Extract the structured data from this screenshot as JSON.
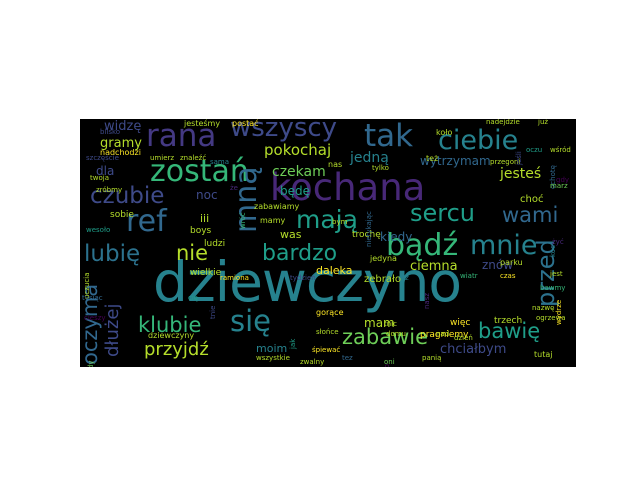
{
  "colors": {
    "background": "#000000",
    "page": "#ffffff",
    "palette": [
      "#26828e",
      "#31688e",
      "#3e4a89",
      "#482878",
      "#440154",
      "#1f9e89",
      "#35b779",
      "#6ece58",
      "#b5de2b",
      "#fde725"
    ]
  },
  "words": {
    "dziewczyno": "dziewczyno",
    "kochana": "kochana",
    "rana": "rana",
    "wszyscy": "wszyscy",
    "tak": "tak",
    "ciebie": "ciebie",
    "zostan": "zostań",
    "mna": "mną",
    "ref": "ref",
    "maja": "mają",
    "badz": "bądź",
    "mnie": "mnie",
    "sercu": "sercu",
    "wami": "wami",
    "czubie": "czubie",
    "nie": "nie",
    "lubie": "lubię",
    "bardzo": "bardzo",
    "przed": "przed",
    "oczyma": "oczyma",
    "dluzej": "dłużej",
    "klubie": "klubie",
    "sie": "się",
    "zabawie": "zabawie",
    "bawie": "bawię",
    "przyjdz": "przyjdź",
    "pokochaj": "pokochaj",
    "czekam": "czekam",
    "jesli": "jeśli",
    "widze": "widzę",
    "gramy": "gramy",
    "jedna": "jedną",
    "jestes": "jesteś",
    "wytrzymam": "wytrzymam",
    "kiedy": "kiedy",
    "ciemna": "ciemna",
    "znow": "znów",
    "noc": "noc",
    "bede": "będę",
    "dla": "dla",
    "mam": "mam",
    "zebralo": "zebrało",
    "daleka": "daleka",
    "moim": "moim",
    "chcialbym": "chciałbym",
    "wielkie": "wielkie",
    "was": "was",
    "troche": "trochę",
    "iii": "iii",
    "sobie": "sobie",
    "boys": "boys",
    "ludzi": "ludzi",
    "mamy": "mamy",
    "zabawiamy": "zabawiamy",
    "pragniemy": "pragniemy",
    "jedyna": "jedyna",
    "parku": "parku",
    "chociaz": "choć",
    "nadchodzi": "nadchodzi",
    "twoja": "twoja",
    "zrobmy": "zróbmy",
    "blisko": "blisko",
    "jestesmy": "jesteśmy",
    "postac": "postać",
    "umierz": "umierz",
    "znalezc": "znaleźć",
    "nas": "nas",
    "tylko": "tylko",
    "kolo": "koło",
    "tez": "też",
    "nadejdzie": "nadejdzie",
    "juz": "już",
    "przegoni": "przegoni",
    "dzien": "dzień",
    "dziewczyny": "dziewczyny",
    "gorace": "gorące",
    "slonce": "słońce",
    "wiec": "więc",
    "trzech": "trzech",
    "tutaj": "tutaj",
    "nad": "nad",
    "pania": "panią",
    "wszystkie": "wszystkie",
    "spiewac": "śpiewać",
    "nazwe": "nazwę",
    "ogrzewa": "ogrzewa",
    "jest": "jest",
    "tnic": "tnic",
    "domu": "domu",
    "oczu": "oczu",
    "wsrod": "wśród",
    "ochote": "ochotę",
    "gdy": "gdy",
    "marz": "marz",
    "koc": "koc",
    "zyc": "żyć",
    "bawmy": "bawmy",
    "wydrze": "wydrze",
    "szczescie": "szczęście",
    "wesoko": "wesoło",
    "uczucia": "uczucia",
    "tysiac": "tysiąc",
    "cieszy": "cieszy",
    "kazdy": "każdy",
    "sama": "sama",
    "ze": "że",
    "wroc": "wróć",
    "ramiona": "ramiona",
    "tydzien": "tydzień",
    "jak": "jak",
    "zwalny": "zwalny",
    "tez2": "tez",
    "kto": "kto",
    "oni": "oni",
    "raz": "raz",
    "nasz": "nasz",
    "wiatr": "wiatr",
    "czas": "czas",
    "tnie": "tnie",
    "cie": "cię",
    "bym": "bym",
    "niesytkajsam": "nietykając"
  }
}
